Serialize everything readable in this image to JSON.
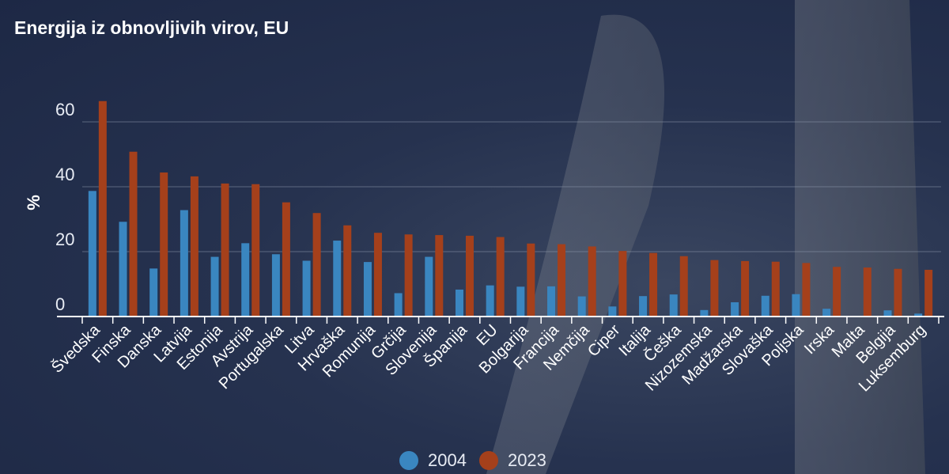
{
  "chart_data": {
    "type": "bar",
    "title": "Energija iz obnovljivih virov, EU",
    "xlabel": "",
    "ylabel": "%",
    "ylim": [
      0,
      70
    ],
    "yticks": [
      0,
      20,
      40,
      60
    ],
    "grid": true,
    "legend_position": "bottom-center",
    "categories": [
      "Švedska",
      "Finska",
      "Danska",
      "Latvija",
      "Estonija",
      "Avstrija",
      "Portugalska",
      "Litva",
      "Hrvaška",
      "Romunija",
      "Grčija",
      "Slovenija",
      "Španija",
      "EU",
      "Bolgarija",
      "Francija",
      "Nemčija",
      "Ciper",
      "Italija",
      "Češka",
      "Nizozemska",
      "Madžarska",
      "Slovaška",
      "Poljska",
      "Irska",
      "Malta",
      "Belgija",
      "Luksemburg"
    ],
    "series": [
      {
        "name": "2004",
        "color": "#3a86c0",
        "values": [
          38.7,
          29.2,
          14.8,
          32.8,
          18.4,
          22.6,
          19.2,
          17.2,
          23.4,
          16.8,
          7.2,
          18.4,
          8.3,
          9.6,
          9.2,
          9.3,
          6.2,
          3.1,
          6.3,
          6.8,
          2.0,
          4.4,
          6.4,
          6.9,
          2.4,
          0.1,
          1.9,
          0.9
        ]
      },
      {
        "name": "2023",
        "color": "#a5401b",
        "values": [
          66.4,
          50.8,
          44.4,
          43.2,
          41.0,
          40.8,
          35.2,
          31.9,
          28.1,
          25.8,
          25.3,
          25.1,
          24.9,
          24.5,
          22.5,
          22.3,
          21.6,
          20.2,
          19.6,
          18.6,
          17.4,
          17.1,
          16.9,
          16.5,
          15.3,
          15.1,
          14.7,
          14.4
        ]
      }
    ]
  }
}
